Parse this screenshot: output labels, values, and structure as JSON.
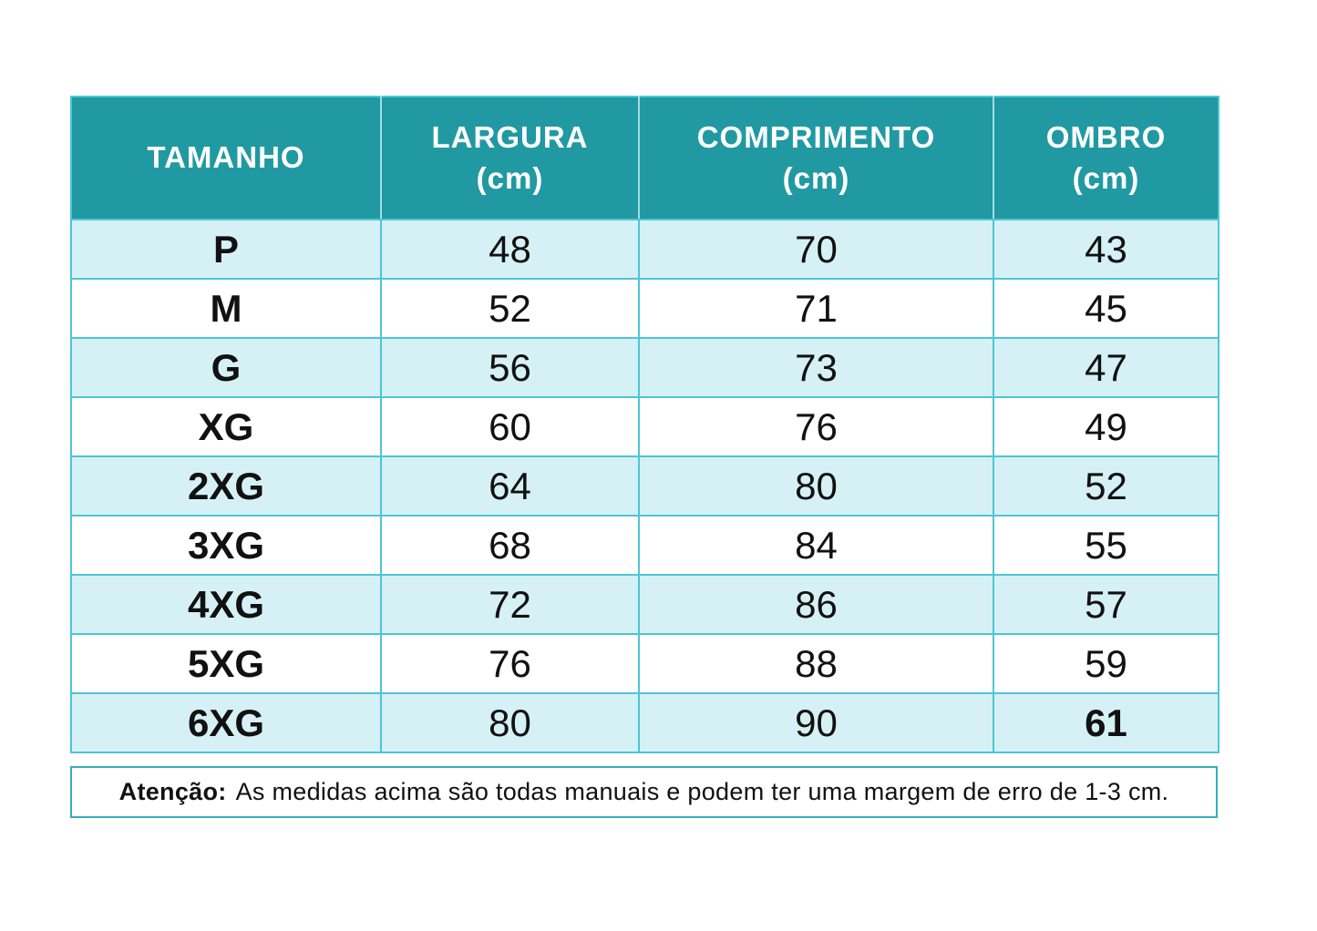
{
  "colors": {
    "header_bg": "#2199a2",
    "row_alt_bg": "#d6f1f6",
    "grid_line": "#4cc6d4",
    "note_border": "#35aebc",
    "text": "#111111",
    "header_text": "#ffffff"
  },
  "chart_data": {
    "type": "table",
    "title": "",
    "columns": [
      {
        "label": "TAMANHO",
        "unit": ""
      },
      {
        "label": "LARGURA",
        "unit": "(cm)"
      },
      {
        "label": "COMPRIMENTO",
        "unit": "(cm)"
      },
      {
        "label": "OMBRO",
        "unit": "(cm)"
      }
    ],
    "rows": [
      {
        "tamanho": "P",
        "largura": "48",
        "comprimento": "70",
        "ombro": "43",
        "bold": null
      },
      {
        "tamanho": "M",
        "largura": "52",
        "comprimento": "71",
        "ombro": "45",
        "bold": null
      },
      {
        "tamanho": "G",
        "largura": "56",
        "comprimento": "73",
        "ombro": "47",
        "bold": null
      },
      {
        "tamanho": "XG",
        "largura": "60",
        "comprimento": "76",
        "ombro": "49",
        "bold": null
      },
      {
        "tamanho": "2XG",
        "largura": "64",
        "comprimento": "80",
        "ombro": "52",
        "bold": null
      },
      {
        "tamanho": "3XG",
        "largura": "68",
        "comprimento": "84",
        "ombro": "55",
        "bold": null
      },
      {
        "tamanho": "4XG",
        "largura": "72",
        "comprimento": "86",
        "ombro": "57",
        "bold": null
      },
      {
        "tamanho": "5XG",
        "largura": "76",
        "comprimento": "88",
        "ombro": "59",
        "bold": null
      },
      {
        "tamanho": "6XG",
        "largura": "80",
        "comprimento": "90",
        "ombro": "61",
        "bold": "ombro"
      }
    ],
    "layout": {
      "alternating_rows": true,
      "first_row_shaded": true
    }
  },
  "note": {
    "prefix": "Atenção:",
    "text": "As medidas acima são todas manuais e podem ter uma margem de erro de 1-3 cm."
  }
}
